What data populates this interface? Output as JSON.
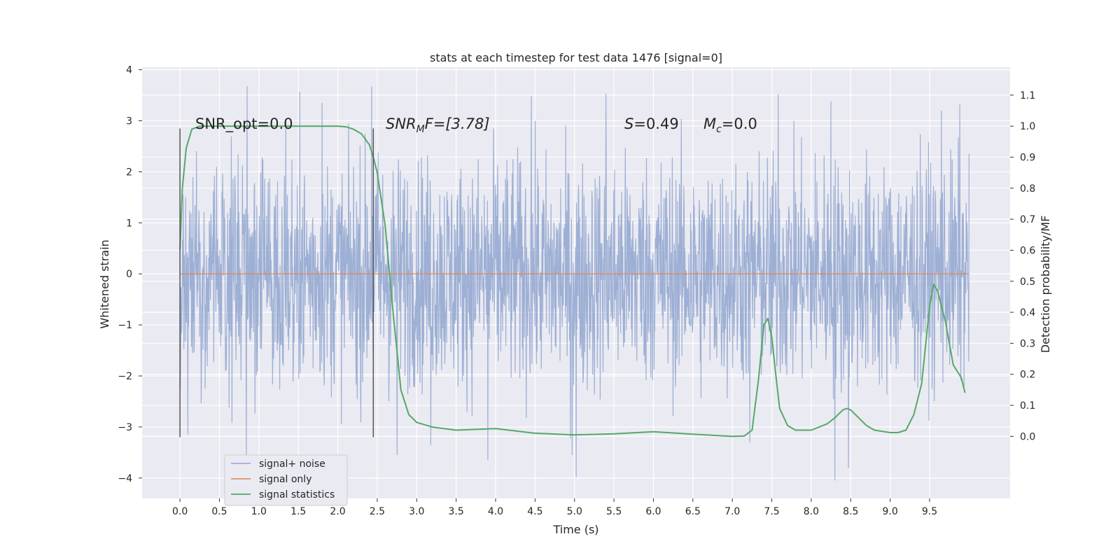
{
  "chart_data": {
    "type": "line",
    "title": "stats at each timestep for test data 1476 [signal=0]",
    "xlabel": "Time (s)",
    "ylabel": "Whitened strain",
    "ylabel_right": "Detection probability/MF",
    "xlim": [
      -0.48,
      10.52
    ],
    "ylim": [
      -4.4,
      4.05
    ],
    "ylim_right": [
      -0.2,
      1.19
    ],
    "x_ticks": [
      "0.0",
      "0.5",
      "1.0",
      "1.5",
      "2.0",
      "2.5",
      "3.0",
      "3.5",
      "4.0",
      "4.5",
      "5.0",
      "5.5",
      "6.0",
      "6.5",
      "7.0",
      "7.5",
      "8.0",
      "8.5",
      "9.0",
      "9.5"
    ],
    "y_ticks": [
      "4",
      "3",
      "2",
      "1",
      "0",
      "−1",
      "−2",
      "−3",
      "−4"
    ],
    "y_right_ticks": [
      "1.1",
      "1.0",
      "0.9",
      "0.8",
      "0.7",
      "0.6",
      "0.5",
      "0.4",
      "0.3",
      "0.2",
      "0.1",
      "0.0"
    ],
    "grid": true,
    "legend_position": "lower-left",
    "annotations": {
      "snr_opt": "SNR_opt=0.0",
      "snr_mf_prefix": "SNR",
      "snr_mf_sub": "M",
      "snr_mf_suffix": "F=[3.78]",
      "s_prefix": "S",
      "s_value": "=0.49",
      "mc_prefix": "M",
      "mc_sub": "c",
      "mc_value": "=0.0"
    },
    "vertical_markers": [
      0.0,
      2.45
    ],
    "series": [
      {
        "name": "signal+ noise",
        "axis": "left",
        "color": "#8fa4cf",
        "x_range": [
          0.0,
          10.0
        ],
        "envelope": [
          [
            0.0,
            2.0,
            -2.1
          ],
          [
            0.5,
            2.2,
            -2.4
          ],
          [
            1.0,
            2.4,
            -2.2
          ],
          [
            1.5,
            2.5,
            -2.3
          ],
          [
            2.0,
            2.3,
            -2.4
          ],
          [
            2.5,
            2.5,
            -2.5
          ],
          [
            3.0,
            2.4,
            -2.3
          ],
          [
            3.5,
            2.3,
            -2.4
          ],
          [
            4.0,
            2.5,
            -2.5
          ],
          [
            4.5,
            2.4,
            -2.4
          ],
          [
            5.0,
            2.3,
            -2.6
          ],
          [
            5.5,
            2.4,
            -2.4
          ],
          [
            6.0,
            2.5,
            -2.3
          ],
          [
            6.5,
            2.4,
            -2.5
          ],
          [
            7.0,
            2.3,
            -2.4
          ],
          [
            7.5,
            2.4,
            -2.4
          ],
          [
            8.0,
            2.5,
            -2.3
          ],
          [
            8.5,
            2.4,
            -2.5
          ],
          [
            9.0,
            2.3,
            -2.4
          ],
          [
            9.5,
            2.4,
            -2.3
          ],
          [
            10.0,
            2.3,
            -2.3
          ]
        ],
        "peaks": [
          [
            0.85,
            3.68
          ],
          [
            0.84,
            -3.6
          ],
          [
            1.52,
            3.57
          ],
          [
            2.43,
            3.67
          ],
          [
            2.75,
            -3.55
          ],
          [
            3.18,
            -3.35
          ],
          [
            3.9,
            -3.65
          ],
          [
            4.45,
            3.48
          ],
          [
            4.97,
            -3.55
          ],
          [
            5.02,
            -3.98
          ],
          [
            5.4,
            3.53
          ],
          [
            7.22,
            -3.3
          ],
          [
            7.58,
            3.52
          ],
          [
            8.25,
            3.38
          ],
          [
            8.3,
            -4.05
          ],
          [
            8.47,
            -3.8
          ],
          [
            9.65,
            3.2
          ],
          [
            9.88,
            3.32
          ],
          [
            0.1,
            -3.15
          ],
          [
            1.8,
            3.35
          ]
        ]
      },
      {
        "name": "signal only",
        "axis": "left",
        "color": "#dd8452",
        "x": [
          0.0,
          10.0
        ],
        "y": [
          0.0,
          0.0
        ]
      },
      {
        "name": "signal statistics",
        "axis": "right",
        "color": "#55a868",
        "x": [
          0.0,
          0.03,
          0.08,
          0.15,
          0.25,
          0.5,
          1.0,
          1.5,
          2.0,
          2.1,
          2.2,
          2.3,
          2.4,
          2.45,
          2.5,
          2.6,
          2.7,
          2.8,
          2.9,
          3.0,
          3.2,
          3.5,
          4.0,
          4.5,
          5.0,
          5.5,
          6.0,
          6.5,
          7.0,
          7.15,
          7.25,
          7.33,
          7.4,
          7.45,
          7.5,
          7.55,
          7.6,
          7.7,
          7.8,
          8.0,
          8.2,
          8.3,
          8.4,
          8.45,
          8.5,
          8.6,
          8.7,
          8.8,
          9.0,
          9.1,
          9.2,
          9.3,
          9.4,
          9.5,
          9.55,
          9.6,
          9.65,
          9.7,
          9.8,
          9.9,
          9.95
        ],
        "y": [
          0.6,
          0.8,
          0.93,
          0.99,
          1.0,
          1.0,
          1.0,
          1.0,
          1.0,
          0.998,
          0.99,
          0.975,
          0.94,
          0.9,
          0.85,
          0.68,
          0.4,
          0.15,
          0.07,
          0.045,
          0.03,
          0.02,
          0.025,
          0.01,
          0.005,
          0.008,
          0.015,
          0.007,
          0.0,
          0.001,
          0.02,
          0.18,
          0.36,
          0.38,
          0.32,
          0.2,
          0.09,
          0.035,
          0.02,
          0.02,
          0.04,
          0.06,
          0.085,
          0.09,
          0.085,
          0.06,
          0.035,
          0.02,
          0.012,
          0.012,
          0.02,
          0.07,
          0.17,
          0.42,
          0.49,
          0.47,
          0.42,
          0.37,
          0.23,
          0.19,
          0.14
        ]
      }
    ]
  }
}
